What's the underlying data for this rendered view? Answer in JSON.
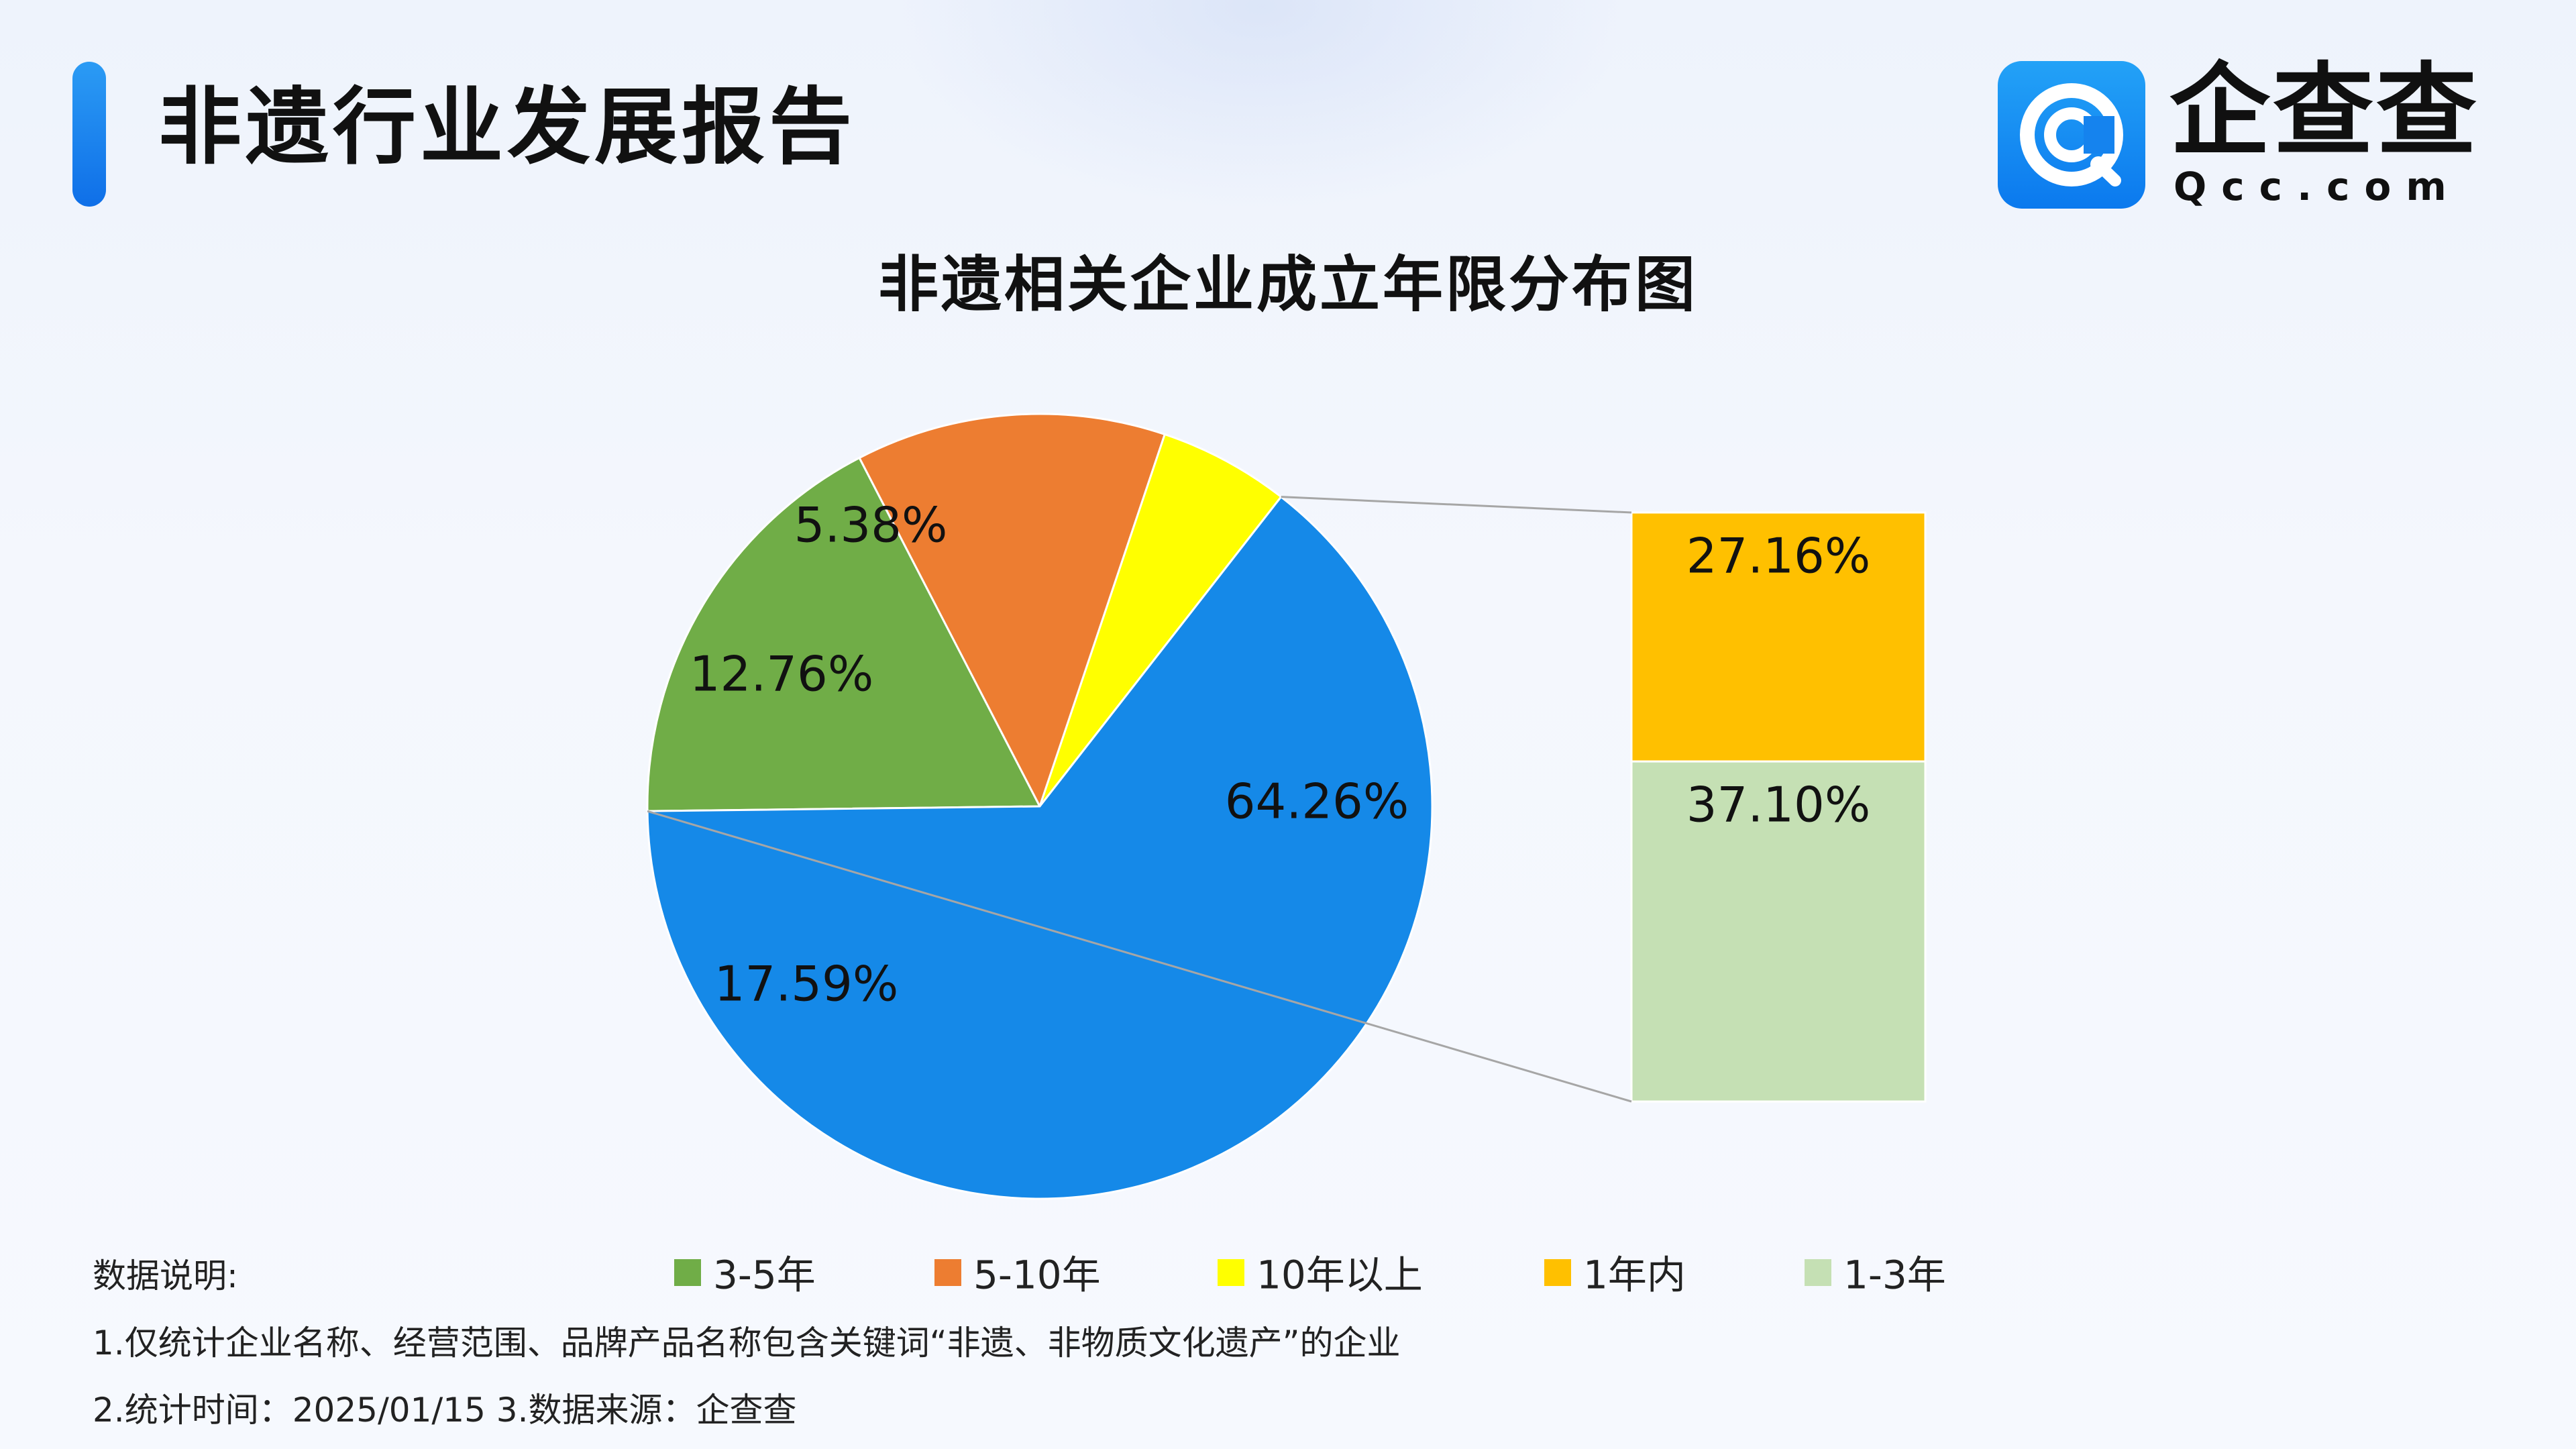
{
  "header": {
    "title": "非遗行业发展报告"
  },
  "logo": {
    "name": "企查查",
    "domain": "Qcc.com",
    "tile_color": "#1a8ff2"
  },
  "chart_data": {
    "type": "pie",
    "title": "非遗相关企业成立年限分布图",
    "subtype": "bar-of-pie",
    "slices": [
      {
        "name": "3-5年",
        "value": 17.59,
        "label": "17.59%",
        "color": "#70ad47"
      },
      {
        "name": "5-10年",
        "value": 12.76,
        "label": "12.76%",
        "color": "#ed7d31"
      },
      {
        "name": "10年以上",
        "value": 5.38,
        "label": "5.38%",
        "color": "#ffff00"
      },
      {
        "name": "1-3年 + 1年内",
        "value": 64.26,
        "label": "64.26%",
        "color": "#1589e8"
      }
    ],
    "breakout_bar": {
      "parent": "1-3年 + 1年内",
      "segments": [
        {
          "name": "1年内",
          "value": 27.16,
          "label": "27.16%",
          "color": "#ffc000"
        },
        {
          "name": "1-3年",
          "value": 37.1,
          "label": "37.10%",
          "color": "#c5e0b4"
        }
      ]
    },
    "legend": {
      "placement": "bottom",
      "items": [
        {
          "name": "3-5年",
          "color": "#70ad47"
        },
        {
          "name": "5-10年",
          "color": "#ed7d31"
        },
        {
          "name": "10年以上",
          "color": "#ffff00"
        },
        {
          "name": "1年内",
          "color": "#ffc000"
        },
        {
          "name": "1-3年",
          "color": "#c5e0b4"
        }
      ]
    }
  },
  "notes": {
    "heading": "数据说明:",
    "line1": "1.仅统计企业名称、经营范围、品牌产品名称包含关键词“非遗、非物质文化遗产”的企业",
    "line2": "2.统计时间：2025/01/15    3.数据来源：企查查"
  }
}
